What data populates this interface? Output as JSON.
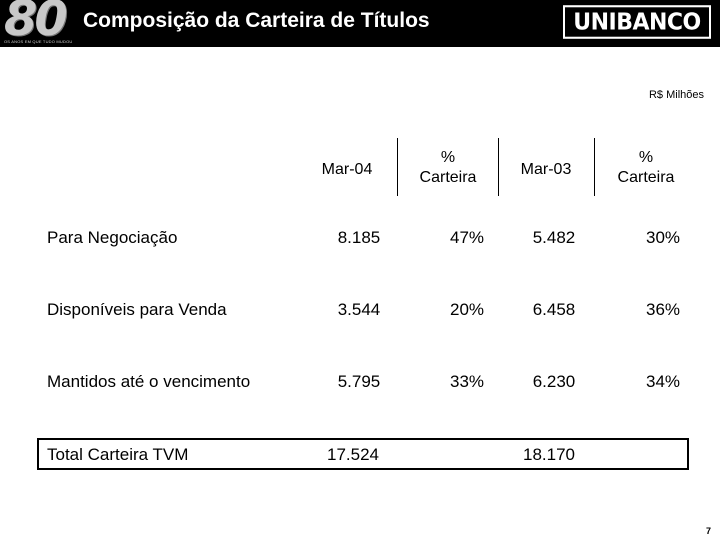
{
  "header": {
    "logo_text": "80",
    "logo_tagline": "OS ANOS EM QUE TUDO MUDOU",
    "title": "Composição da Carteira de Títulos",
    "brand": "UNIBANCO"
  },
  "unit_label": "R$ Milhões",
  "columns": [
    {
      "line1": "Mar-04",
      "line2": ""
    },
    {
      "line1": "%",
      "line2": "Carteira"
    },
    {
      "line1": "Mar-03",
      "line2": ""
    },
    {
      "line1": "%",
      "line2": "Carteira"
    }
  ],
  "rows": [
    {
      "label": "Para Negociação",
      "values": [
        "8.185",
        "47%",
        "5.482",
        "30%"
      ]
    },
    {
      "label": "Disponíveis para Venda",
      "values": [
        "3.544",
        "20%",
        "6.458",
        "36%"
      ]
    },
    {
      "label": "Mantidos até o vencimento",
      "values": [
        "5.795",
        "33%",
        "6.230",
        "34%"
      ]
    }
  ],
  "total": {
    "label": "Total Carteira TVM",
    "values": [
      "17.524",
      "",
      "18.170",
      ""
    ]
  },
  "page_number": "7"
}
